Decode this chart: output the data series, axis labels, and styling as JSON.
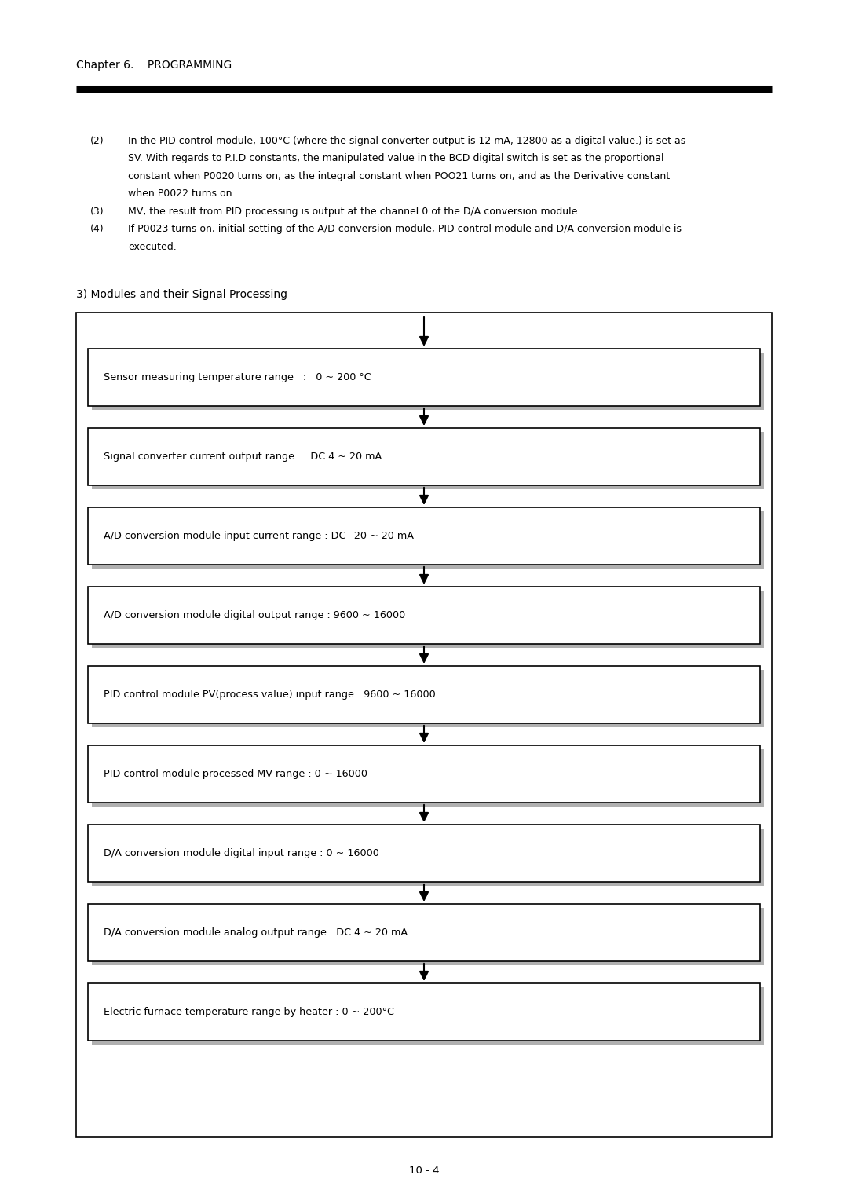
{
  "page_bg": "#ffffff",
  "chapter_header": "Chapter 6.    PROGRAMMING",
  "page_number": "10 - 4",
  "para_lines": [
    [
      "(2)",
      "In the PID control module, 100°C (where the signal converter output is 12 mA, 12800 as a digital value.) is set as"
    ],
    [
      "",
      "SV. With regards to P.I.D constants, the manipulated value in the BCD digital switch is set as the proportional"
    ],
    [
      "",
      "constant when P0020 turns on, as the integral constant when POO21 turns on, and as the Derivative constant"
    ],
    [
      "",
      "when P0022 turns on."
    ],
    [
      "(3)",
      "MV, the result from PID processing is output at the channel 0 of the D/A conversion module."
    ],
    [
      "(4)",
      "If P0023 turns on, initial setting of the A/D conversion module, PID control module and D/A conversion module is"
    ],
    [
      "",
      "executed."
    ]
  ],
  "section_title": "3) Modules and their Signal Processing",
  "boxes": [
    "Sensor measuring temperature range   :   0 ~ 200 °C",
    "Signal converter current output range :   DC 4 ~ 20 mA",
    "A/D conversion module input current range : DC –20 ~ 20 mA",
    "A/D conversion module digital output range : 9600 ~ 16000",
    "PID control module PV(process value) input range : 9600 ~ 16000",
    "PID control module processed MV range : 0 ~ 16000",
    "D/A conversion module digital input range : 0 ~ 16000",
    "D/A conversion module analog output range : DC 4 ~ 20 mA",
    "Electric furnace temperature range by heater : 0 ~ 200°C"
  ]
}
